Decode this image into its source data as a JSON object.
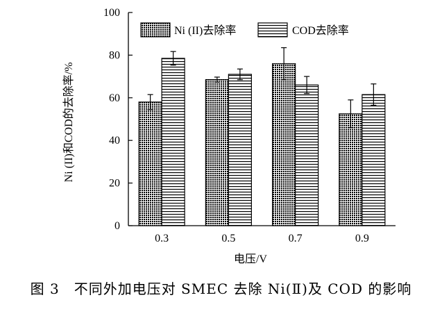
{
  "chart_data": {
    "type": "bar",
    "categories": [
      "0.3",
      "0.5",
      "0.7",
      "0.9"
    ],
    "series": [
      {
        "name": "Ni (II)去除率",
        "values": [
          58,
          68.5,
          76,
          52.5
        ],
        "errors": [
          3.5,
          1.2,
          7.5,
          6.5
        ],
        "pattern": "checker"
      },
      {
        "name": "COD去除率",
        "values": [
          78.5,
          71,
          66,
          61.5
        ],
        "errors": [
          3.2,
          2.5,
          4,
          5
        ],
        "pattern": "hlines"
      }
    ],
    "xlabel": "电压/V",
    "ylabel": "Ni (II)和COD的去除率/%",
    "ylim": [
      0,
      100
    ],
    "yticks": [
      0,
      20,
      40,
      60,
      80,
      100
    ],
    "legend_position": "top"
  },
  "caption": "图 3　不同外加电压对 SMEC 去除 Ni(Ⅱ)及 COD 的影响"
}
